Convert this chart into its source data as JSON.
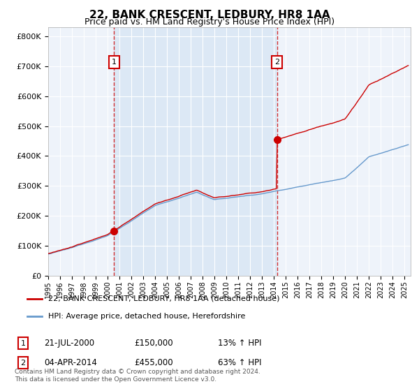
{
  "title": "22, BANK CRESCENT, LEDBURY, HR8 1AA",
  "subtitle": "Price paid vs. HM Land Registry's House Price Index (HPI)",
  "ylabel_ticks": [
    "£0",
    "£100K",
    "£200K",
    "£300K",
    "£400K",
    "£500K",
    "£600K",
    "£700K",
    "£800K"
  ],
  "ytick_values": [
    0,
    100000,
    200000,
    300000,
    400000,
    500000,
    600000,
    700000,
    800000
  ],
  "ylim": [
    0,
    830000
  ],
  "xlim_start": 1995.0,
  "xlim_end": 2025.5,
  "bg_color_inner": "#dce8f5",
  "bg_color_outer": "#eef3fa",
  "grid_color": "#ffffff",
  "sale1_x": 2000.54,
  "sale1_y": 150000,
  "sale2_x": 2014.25,
  "sale2_y": 455000,
  "legend_line1": "22, BANK CRESCENT, LEDBURY, HR8 1AA (detached house)",
  "legend_line2": "HPI: Average price, detached house, Herefordshire",
  "sale1_date": "21-JUL-2000",
  "sale1_price": "£150,000",
  "sale1_hpi": "13% ↑ HPI",
  "sale2_date": "04-APR-2014",
  "sale2_price": "£455,000",
  "sale2_hpi": "63% ↑ HPI",
  "footer": "Contains HM Land Registry data © Crown copyright and database right 2024.\nThis data is licensed under the Open Government Licence v3.0.",
  "red_color": "#cc0000",
  "blue_color": "#6699cc"
}
